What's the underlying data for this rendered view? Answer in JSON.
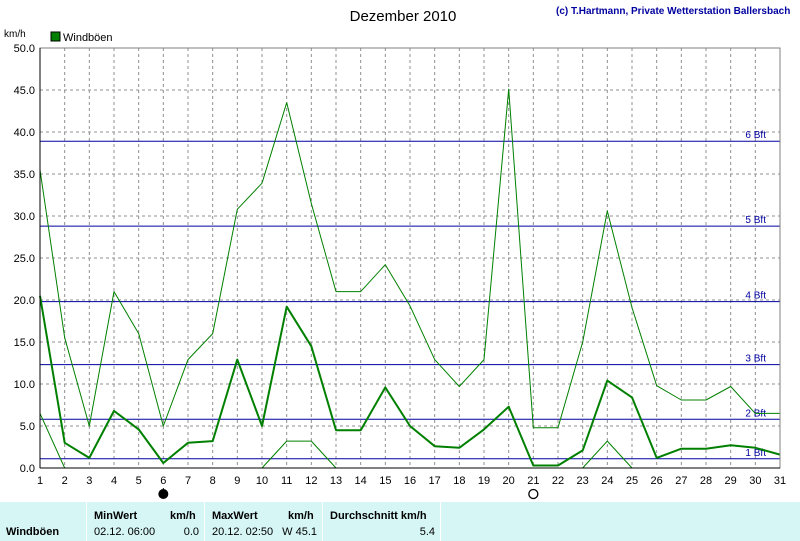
{
  "chart_data": {
    "type": "line",
    "title": "Dezember 2010",
    "credit": "(c) T.Hartmann, Private Wetterstation Ballersbach",
    "ylabel": "km/h",
    "ylim": [
      0,
      50
    ],
    "yticks": [
      "0.0",
      "5.0",
      "10.0",
      "15.0",
      "20.0",
      "25.0",
      "30.0",
      "35.0",
      "40.0",
      "45.0",
      "50.0"
    ],
    "xlim": [
      1,
      31
    ],
    "xticks": [
      "1",
      "2",
      "3",
      "4",
      "5",
      "6",
      "7",
      "8",
      "9",
      "10",
      "11",
      "12",
      "13",
      "14",
      "15",
      "16",
      "17",
      "18",
      "19",
      "20",
      "21",
      "22",
      "23",
      "24",
      "25",
      "26",
      "27",
      "28",
      "29",
      "30",
      "31"
    ],
    "grid": true,
    "legend": {
      "position": "top-left",
      "label": "Windböen",
      "color": "#008000"
    },
    "x": [
      1,
      2,
      3,
      4,
      5,
      6,
      7,
      8,
      9,
      10,
      11,
      12,
      13,
      14,
      15,
      16,
      17,
      18,
      19,
      20,
      21,
      22,
      23,
      24,
      25,
      26,
      27,
      28,
      29,
      30,
      31
    ],
    "series": [
      {
        "name": "Windböen",
        "role": "mean",
        "values": [
          20.5,
          3,
          1.2,
          6.8,
          4.6,
          0.6,
          3,
          3.2,
          12.9,
          5,
          19.2,
          14.5,
          4.5,
          4.5,
          9.6,
          5,
          2.6,
          2.4,
          4.6,
          7.3,
          0.3,
          0.3,
          2.1,
          10.4,
          8.4,
          1.2,
          2.3,
          2.3,
          2.7,
          2.4,
          1.6
        ]
      },
      {
        "role": "max",
        "values": [
          35.5,
          15.5,
          5,
          21,
          16,
          5,
          12.9,
          16,
          30.8,
          33.9,
          43.5,
          31.5,
          21,
          21,
          24.2,
          19.3,
          12.9,
          9.7,
          12.9,
          45.1,
          4.8,
          4.8,
          15,
          30.6,
          19.1,
          9.8,
          8.1,
          8.1,
          9.7,
          6.5,
          6.5
        ]
      },
      {
        "role": "min",
        "values": [
          6.5,
          0,
          null,
          null,
          null,
          null,
          null,
          null,
          null,
          0,
          3.2,
          3.2,
          0,
          null,
          null,
          null,
          null,
          null,
          null,
          null,
          null,
          null,
          0,
          3.2,
          0,
          null,
          null,
          null,
          null,
          null,
          null
        ]
      }
    ],
    "beaufort_lines": [
      {
        "label": "1 Bft",
        "value": 1.1
      },
      {
        "label": "2 Bft",
        "value": 5.8
      },
      {
        "label": "3 Bft",
        "value": 12.3
      },
      {
        "label": "4 Bft",
        "value": 19.8
      },
      {
        "label": "5 Bft",
        "value": 28.8
      },
      {
        "label": "6 Bft",
        "value": 38.9
      }
    ],
    "moon_phases": [
      {
        "day": 6,
        "phase": "new"
      },
      {
        "day": 21,
        "phase": "full"
      }
    ]
  },
  "footer": {
    "row_label": "Windböen",
    "min": {
      "header": "MinWert",
      "unit": "km/h",
      "time": "02.12.  06:00",
      "value": "0.0"
    },
    "max": {
      "header": "MaxWert",
      "unit": "km/h",
      "time": "20.12.  02:50",
      "value": "W 45.1"
    },
    "avg": {
      "header": "Durchschnitt km/h",
      "value": "5.4"
    }
  }
}
